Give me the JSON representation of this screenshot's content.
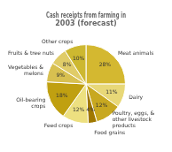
{
  "chart_data": {
    "type": "pie",
    "title": "Cash receipts from farming in\n2003 (forecast)",
    "categories": [
      "Meat animals",
      "Dairy",
      "Poultry, eggs, &\nother livestock\nproducts",
      "Food grains",
      "Feed crops",
      "Oil-bearing\ncrops",
      "Vegetables &\nmelons",
      "Fruits & tree nuts",
      "Other crops"
    ],
    "values": [
      28,
      11,
      12,
      4,
      12,
      18,
      9,
      8,
      10
    ],
    "value_labels": [
      "28%",
      "11%",
      "12%",
      "4%",
      "12%",
      "18%",
      "9%",
      "8%",
      "10%"
    ],
    "colors": [
      "#d4b830",
      "#e8d878",
      "#c8a820",
      "#a07800",
      "#ede080",
      "#c0a010",
      "#d8c050",
      "#e0cc68",
      "#cdb830"
    ],
    "data_labels": true
  }
}
